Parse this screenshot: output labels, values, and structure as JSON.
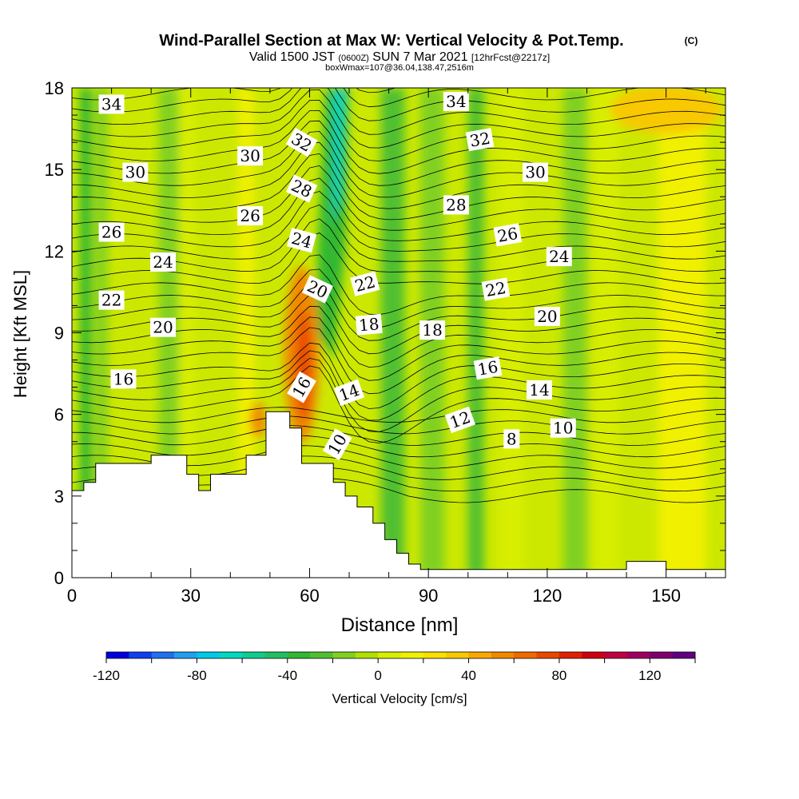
{
  "chart_data": {
    "type": "heatmap",
    "title": "Wind-Parallel Section at Max W: Vertical Velocity & Pot.Temp.",
    "title_copyright": "(C)",
    "subtitle": {
      "valid": "Valid 1500 JST",
      "utc": "(0600Z)",
      "date": "SUN 7 Mar 2021",
      "forecast": "[12hrFcst@2217z]"
    },
    "subtitle2": "boxWmax=107@36.04,138.47,2516m",
    "xlabel": "Distance [nm]",
    "ylabel": "Height [Kft MSL]",
    "xlim": [
      0,
      165
    ],
    "ylim": [
      0,
      18
    ],
    "x_ticks": [
      0,
      30,
      60,
      90,
      120,
      150
    ],
    "y_ticks": [
      0,
      3,
      6,
      9,
      12,
      15,
      18
    ],
    "terrain": [
      [
        0,
        3.2
      ],
      [
        3,
        3.2
      ],
      [
        3,
        3.5
      ],
      [
        6,
        3.5
      ],
      [
        6,
        4.2
      ],
      [
        20,
        4.2
      ],
      [
        20,
        4.5
      ],
      [
        29,
        4.5
      ],
      [
        29,
        3.8
      ],
      [
        32,
        3.8
      ],
      [
        32,
        3.2
      ],
      [
        35,
        3.2
      ],
      [
        35,
        3.8
      ],
      [
        44,
        3.8
      ],
      [
        44,
        4.5
      ],
      [
        49,
        4.5
      ],
      [
        49,
        6.1
      ],
      [
        55,
        6.1
      ],
      [
        55,
        5.5
      ],
      [
        58,
        5.5
      ],
      [
        58,
        4.2
      ],
      [
        66,
        4.2
      ],
      [
        66,
        3.5
      ],
      [
        69,
        3.5
      ],
      [
        69,
        3.0
      ],
      [
        72,
        3.0
      ],
      [
        72,
        2.6
      ],
      [
        76,
        2.6
      ],
      [
        76,
        2.0
      ],
      [
        79,
        2.0
      ],
      [
        79,
        1.4
      ],
      [
        82,
        1.4
      ],
      [
        82,
        0.9
      ],
      [
        85,
        0.9
      ],
      [
        85,
        0.5
      ],
      [
        88,
        0.5
      ],
      [
        88,
        0.3
      ],
      [
        140,
        0.3
      ],
      [
        140,
        0.6
      ],
      [
        150,
        0.6
      ],
      [
        150,
        0.3
      ],
      [
        165,
        0.3
      ]
    ],
    "theta_contours_label": "Potential temperature contours",
    "theta_labels": [
      {
        "text": "34",
        "x": 10,
        "y": 17.4,
        "rot": 0
      },
      {
        "text": "30",
        "x": 16,
        "y": 14.9,
        "rot": 0
      },
      {
        "text": "26",
        "x": 10,
        "y": 12.7,
        "rot": 0
      },
      {
        "text": "24",
        "x": 23,
        "y": 11.6,
        "rot": 0
      },
      {
        "text": "22",
        "x": 10,
        "y": 10.2,
        "rot": 0
      },
      {
        "text": "20",
        "x": 23,
        "y": 9.2,
        "rot": 0
      },
      {
        "text": "16",
        "x": 13,
        "y": 7.3,
        "rot": 0
      },
      {
        "text": "30",
        "x": 45,
        "y": 15.5,
        "rot": 0
      },
      {
        "text": "26",
        "x": 45,
        "y": 13.3,
        "rot": 0
      },
      {
        "text": "32",
        "x": 58,
        "y": 16.0,
        "rot": 30
      },
      {
        "text": "28",
        "x": 58,
        "y": 14.3,
        "rot": 25
      },
      {
        "text": "24",
        "x": 58,
        "y": 12.4,
        "rot": 15
      },
      {
        "text": "20",
        "x": 62,
        "y": 10.6,
        "rot": 25
      },
      {
        "text": "16",
        "x": 58,
        "y": 7.0,
        "rot": -60
      },
      {
        "text": "14",
        "x": 70,
        "y": 6.8,
        "rot": -20
      },
      {
        "text": "10",
        "x": 67,
        "y": 4.9,
        "rot": -60
      },
      {
        "text": "22",
        "x": 74,
        "y": 10.8,
        "rot": -15
      },
      {
        "text": "18",
        "x": 75,
        "y": 9.3,
        "rot": -5
      },
      {
        "text": "18",
        "x": 91,
        "y": 9.1,
        "rot": 0
      },
      {
        "text": "34",
        "x": 97,
        "y": 17.5,
        "rot": 0
      },
      {
        "text": "32",
        "x": 103,
        "y": 16.1,
        "rot": -10
      },
      {
        "text": "28",
        "x": 97,
        "y": 13.7,
        "rot": 0
      },
      {
        "text": "30",
        "x": 117,
        "y": 14.9,
        "rot": 0
      },
      {
        "text": "26",
        "x": 110,
        "y": 12.6,
        "rot": -10
      },
      {
        "text": "24",
        "x": 123,
        "y": 11.8,
        "rot": 0
      },
      {
        "text": "22",
        "x": 107,
        "y": 10.6,
        "rot": -10
      },
      {
        "text": "20",
        "x": 120,
        "y": 9.6,
        "rot": 0
      },
      {
        "text": "16",
        "x": 105,
        "y": 7.7,
        "rot": -10
      },
      {
        "text": "14",
        "x": 118,
        "y": 6.9,
        "rot": 0
      },
      {
        "text": "12",
        "x": 98,
        "y": 5.8,
        "rot": -20
      },
      {
        "text": "10",
        "x": 124,
        "y": 5.5,
        "rot": 0
      },
      {
        "text": "8",
        "x": 111,
        "y": 5.1,
        "rot": 0
      }
    ],
    "colorbar": {
      "label": "Vertical Velocity [cm/s]",
      "tick_labels": [
        "-120",
        "-80",
        "-40",
        "0",
        "40",
        "80",
        "120"
      ],
      "tick_values": [
        -120,
        -80,
        -40,
        0,
        40,
        80,
        120
      ],
      "range": [
        -120,
        140
      ],
      "colors": [
        "#0000e0",
        "#1040f0",
        "#2070f0",
        "#20a0f0",
        "#00c8e8",
        "#00d8c0",
        "#10cc90",
        "#20c060",
        "#30b830",
        "#50c030",
        "#80d020",
        "#b0e000",
        "#d8ee00",
        "#f0f000",
        "#f8e000",
        "#f8c800",
        "#f8a800",
        "#f08800",
        "#f06800",
        "#e84800",
        "#e02000",
        "#d00010",
        "#c00040",
        "#a00060",
        "#800070",
        "#600080"
      ]
    }
  }
}
